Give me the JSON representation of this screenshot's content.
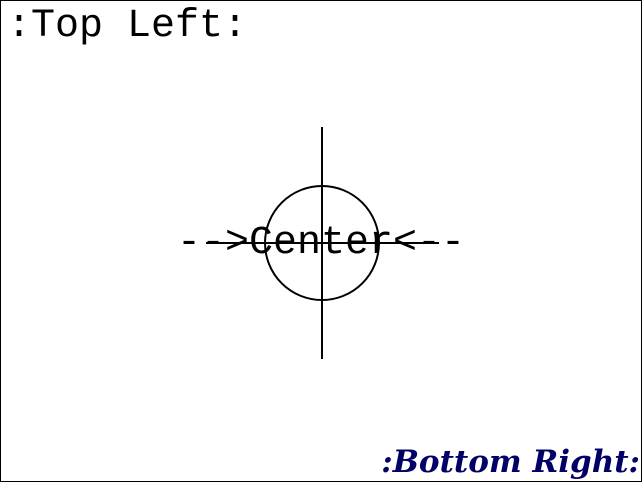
{
  "labels": {
    "top_left": ":Top Left:",
    "center": "-->Center<--",
    "bottom_right": ":Bottom Right:"
  },
  "colors": {
    "background": "#ffffff",
    "border": "#000000",
    "lines": "#000000",
    "bottom_right_text": "#000066"
  }
}
